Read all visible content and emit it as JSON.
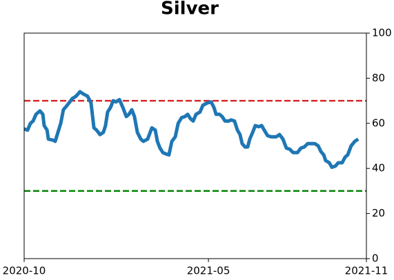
{
  "chart_data": {
    "type": "line",
    "title": "Silver",
    "x": [
      0,
      0.13,
      0.24,
      0.34,
      0.45,
      0.6,
      0.71,
      0.76,
      0.87,
      0.92,
      1.1,
      1.18,
      1.31,
      1.39,
      1.49,
      1.6,
      1.7,
      1.83,
      1.97,
      2.12,
      2.25,
      2.41,
      2.54,
      2.65,
      2.75,
      2.88,
      3.01,
      3.09,
      3.17,
      3.28,
      3.38,
      3.49,
      3.62,
      3.75,
      3.88,
      3.98,
      4.09,
      4.19,
      4.3,
      4.43,
      4.53,
      4.69,
      4.85,
      4.98,
      5.06,
      5.16,
      5.27,
      5.37,
      5.5,
      5.61,
      5.74,
      5.85,
      5.98,
      6.11,
      6.21,
      6.32,
      6.42,
      6.53,
      6.68,
      6.79,
      6.95,
      7.1,
      7.21,
      7.29,
      7.42,
      7.52,
      7.63,
      7.76,
      7.86,
      7.99,
      8.1,
      8.2,
      8.28,
      8.39,
      8.49,
      8.57,
      8.68,
      8.78,
      8.91,
      9.02,
      9.12,
      9.25,
      9.38,
      9.57,
      9.7,
      9.83,
      9.96,
      10.09,
      10.22,
      10.38,
      10.51,
      10.64,
      10.77,
      10.9,
      11.04,
      11.17,
      11.27,
      11.38,
      11.45,
      11.59,
      11.69,
      11.82,
      11.93,
      12.08,
      12.19,
      12.29,
      12.42,
      12.56,
      12.69
    ],
    "series": [
      {
        "color": "#1f77b4",
        "values": [
          57.5,
          57,
          60,
          61,
          64,
          65.5,
          64,
          59,
          57,
          53,
          52.5,
          52,
          57,
          60,
          66,
          67.5,
          69,
          71,
          72,
          74,
          73,
          72,
          69,
          58,
          57,
          55,
          56,
          59,
          65,
          67,
          70,
          69.5,
          70.5,
          67,
          63,
          64,
          66,
          63,
          56,
          53,
          52,
          53,
          58,
          57,
          52,
          49,
          47,
          46.5,
          46,
          52,
          54,
          60,
          62.5,
          63,
          64,
          62,
          61,
          64,
          65,
          68,
          69,
          69.5,
          67,
          64,
          64,
          63,
          61,
          61,
          61.5,
          61,
          57,
          55,
          51,
          49.5,
          49.5,
          53,
          56,
          59,
          58.5,
          59,
          57,
          54.5,
          54,
          54,
          55,
          53,
          49,
          48.5,
          47,
          47,
          49,
          49.5,
          51,
          51,
          51,
          50,
          47.5,
          46,
          43.5,
          42.5,
          40.5,
          41,
          42.5,
          42.5,
          45,
          46,
          50,
          52,
          53
        ]
      }
    ],
    "reference_lines": [
      {
        "value": 70,
        "color": "#d62728"
      },
      {
        "value": 30,
        "color": "green"
      }
    ],
    "xlim": [
      0,
      13
    ],
    "xticks": [
      {
        "value": 0,
        "label": "2020-10"
      },
      {
        "value": 7,
        "label": "2021-05"
      },
      {
        "value": 13,
        "label": "2021-11"
      }
    ],
    "ylim": [
      0,
      100
    ],
    "yticks": [
      0,
      20,
      40,
      60,
      80,
      100
    ],
    "y_axis_side": "right",
    "grid": false
  }
}
